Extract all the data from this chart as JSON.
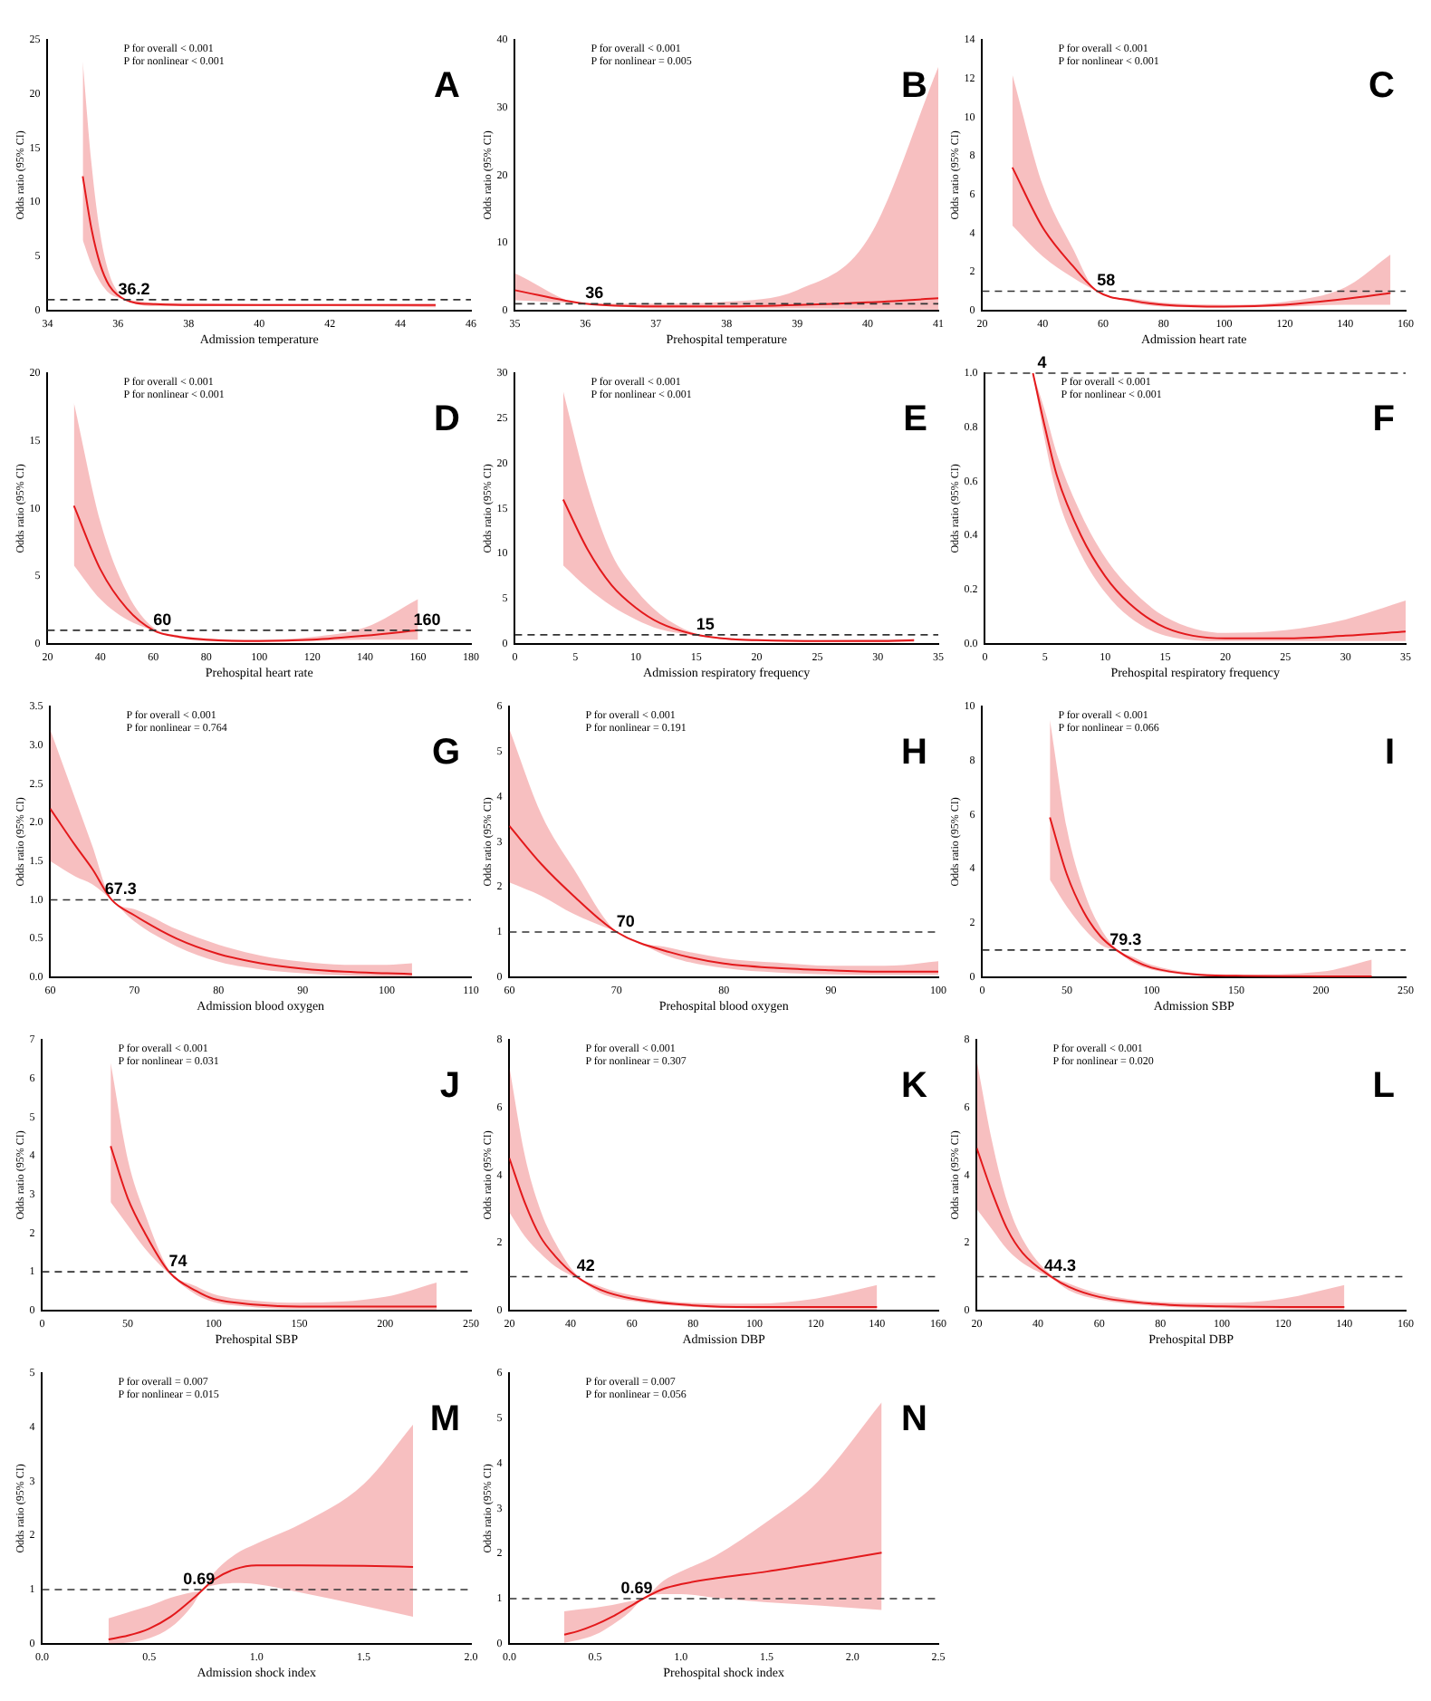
{
  "chart_data": [
    {
      "type": "line",
      "title": "A",
      "xlabel": "Admission temperature",
      "ylabel": "Odds ratio (95% CI)",
      "xlim": [
        34,
        46
      ],
      "xticks": [
        34,
        36,
        38,
        40,
        42,
        44,
        46
      ],
      "ylim": [
        0,
        25
      ],
      "yticks": [
        0,
        5,
        10,
        15,
        20,
        25
      ],
      "grid": false,
      "x": [
        35,
        35.25,
        35.5,
        35.75,
        36,
        36.2,
        36.5,
        37,
        38,
        40,
        42,
        45
      ],
      "series": [
        {
          "color": "#e41a1c",
          "values": [
            12.4,
            7.5,
            4.2,
            2.3,
            1.4,
            1.0,
            0.7,
            0.6,
            0.5,
            0.5,
            0.5,
            0.5
          ],
          "lower": [
            6.5,
            4.2,
            2.6,
            1.6,
            1.2,
            1.0,
            0.6,
            0.4,
            0.4,
            0.4,
            0.4,
            0.3
          ],
          "upper": [
            23,
            13.5,
            7,
            3.4,
            1.7,
            1.0,
            0.9,
            0.7,
            0.7,
            0.6,
            0.6,
            0.6
          ]
        }
      ],
      "ref_lines": [
        {
          "axis": "y",
          "value": 1,
          "color": "#333333",
          "line_style": "dashed"
        }
      ],
      "annotations": [
        "P for overall < 0.001",
        "P for nonlinear < 0.001",
        {
          "text": "36.2",
          "x": 36.2,
          "y": 1
        }
      ]
    },
    {
      "type": "line",
      "title": "B",
      "xlabel": "Prehospital temperature",
      "ylabel": "Odds ratio (95% CI)",
      "xlim": [
        35,
        41
      ],
      "xticks": [
        35,
        36,
        37,
        38,
        39,
        40,
        41
      ],
      "ylim": [
        0,
        40
      ],
      "yticks": [
        0,
        10,
        20,
        30,
        40
      ],
      "grid": false,
      "x": [
        35,
        36,
        37,
        38,
        39,
        40,
        41
      ],
      "series": [
        {
          "color": "#e41a1c",
          "values": [
            3,
            1,
            0.6,
            0.6,
            0.8,
            1.2,
            1.8
          ],
          "lower": [
            1.5,
            1,
            0.3,
            0.3,
            0.3,
            0.2,
            0.1
          ],
          "upper": [
            5.5,
            1,
            1,
            1.3,
            3,
            10.5,
            36
          ]
        }
      ],
      "ref_lines": [
        {
          "axis": "y",
          "value": 1,
          "color": "#333333",
          "line_style": "dashed"
        }
      ],
      "annotations": [
        "P for overall < 0.001",
        "P for nonlinear = 0.005",
        {
          "text": "36",
          "x": 36,
          "y": 1
        }
      ]
    },
    {
      "type": "line",
      "title": "C",
      "xlabel": "Admission heart rate",
      "ylabel": "Odds ratio (95% CI)",
      "xlim": [
        20,
        160
      ],
      "xticks": [
        20,
        40,
        60,
        80,
        100,
        120,
        140,
        160
      ],
      "ylim": [
        0,
        14
      ],
      "yticks": [
        0,
        2,
        4,
        6,
        8,
        10,
        12,
        14
      ],
      "grid": false,
      "x": [
        30,
        40,
        50,
        58,
        70,
        80,
        100,
        120,
        140,
        155
      ],
      "series": [
        {
          "color": "#e41a1c",
          "values": [
            7.4,
            4.3,
            2.3,
            1,
            0.5,
            0.3,
            0.2,
            0.3,
            0.6,
            0.9
          ],
          "lower": [
            4.4,
            2.8,
            1.7,
            1,
            0.4,
            0.2,
            0.15,
            0.2,
            0.3,
            0.3
          ],
          "upper": [
            12.2,
            6.5,
            3.2,
            1,
            0.6,
            0.4,
            0.3,
            0.45,
            1.2,
            2.9
          ]
        }
      ],
      "ref_lines": [
        {
          "axis": "y",
          "value": 1,
          "color": "#333333",
          "line_style": "dashed"
        }
      ],
      "annotations": [
        "P for overall < 0.001",
        "P for nonlinear < 0.001",
        {
          "text": "58",
          "x": 58,
          "y": 1
        }
      ]
    },
    {
      "type": "line",
      "title": "D",
      "xlabel": "Prehospital heart rate",
      "ylabel": "Odds ratio (95% CI)",
      "xlim": [
        20,
        180
      ],
      "xticks": [
        20,
        40,
        60,
        80,
        100,
        120,
        140,
        160,
        180
      ],
      "ylim": [
        0,
        20
      ],
      "yticks": [
        0,
        5,
        10,
        15,
        20
      ],
      "grid": false,
      "x": [
        30,
        40,
        50,
        60,
        70,
        80,
        100,
        120,
        140,
        160
      ],
      "series": [
        {
          "color": "#e41a1c",
          "values": [
            10.2,
            5.5,
            2.6,
            1.0,
            0.5,
            0.3,
            0.2,
            0.3,
            0.6,
            1.0
          ],
          "lower": [
            5.8,
            3.3,
            1.8,
            1,
            0.4,
            0.2,
            0.15,
            0.2,
            0.3,
            0.3
          ],
          "upper": [
            17.8,
            9,
            3.8,
            1.2,
            0.6,
            0.4,
            0.3,
            0.5,
            1.2,
            3.3
          ]
        }
      ],
      "ref_lines": [
        {
          "axis": "y",
          "value": 1,
          "color": "#333333",
          "line_style": "dashed"
        }
      ],
      "annotations": [
        "P for overall < 0.001",
        "P for nonlinear < 0.001",
        {
          "text": "60",
          "x": 60,
          "y": 1
        },
        {
          "text": "160",
          "x": 160,
          "y": 1
        }
      ]
    },
    {
      "type": "line",
      "title": "E",
      "xlabel": "Admission respiratory frequency",
      "ylabel": "Odds ratio (95% CI)",
      "xlim": [
        0,
        35
      ],
      "xticks": [
        0,
        5,
        10,
        15,
        20,
        25,
        30,
        35
      ],
      "ylim": [
        0,
        30
      ],
      "yticks": [
        0,
        5,
        10,
        15,
        20,
        25,
        30
      ],
      "grid": false,
      "x": [
        4,
        6,
        8,
        10,
        12,
        15,
        18,
        20,
        25,
        30,
        33
      ],
      "series": [
        {
          "color": "#e41a1c",
          "values": [
            16,
            10.5,
            6.5,
            4,
            2.3,
            1,
            0.5,
            0.4,
            0.3,
            0.3,
            0.4
          ],
          "lower": [
            8.7,
            6.2,
            4.2,
            2.7,
            1.6,
            0.9,
            0.4,
            0.3,
            0.2,
            0.2,
            0.2
          ],
          "upper": [
            28,
            17.5,
            10,
            6,
            3.3,
            1.1,
            0.6,
            0.5,
            0.4,
            0.5,
            0.5
          ]
        }
      ],
      "ref_lines": [
        {
          "axis": "y",
          "value": 1,
          "color": "#333333",
          "line_style": "dashed"
        }
      ],
      "annotations": [
        "P for overall < 0.001",
        "P for nonlinear < 0.001",
        {
          "text": "15",
          "x": 15,
          "y": 1
        }
      ]
    },
    {
      "type": "line",
      "title": "F",
      "xlabel": "Prehospital respiratory frequency",
      "ylabel": "Odds ratio (95% CI)",
      "xlim": [
        0,
        35
      ],
      "xticks": [
        0,
        5,
        10,
        15,
        20,
        25,
        30,
        35
      ],
      "ylim": [
        0,
        1
      ],
      "yticks": [
        {
          "value": 0,
          "label": "0.0"
        },
        0.2,
        0.4,
        0.6,
        0.8,
        {
          "value": 1,
          "label": "1.0"
        }
      ],
      "grid": false,
      "x": [
        4,
        5,
        6,
        8,
        10,
        12,
        15,
        20,
        25,
        30,
        35
      ],
      "series": [
        {
          "color": "#e41a1c",
          "values": [
            1,
            0.8,
            0.62,
            0.4,
            0.25,
            0.15,
            0.06,
            0.02,
            0.02,
            0.03,
            0.045
          ],
          "lower": [
            1,
            0.75,
            0.55,
            0.33,
            0.19,
            0.1,
            0.03,
            0.01,
            0.01,
            0.01,
            0.01
          ],
          "upper": [
            1,
            0.86,
            0.7,
            0.48,
            0.32,
            0.21,
            0.1,
            0.04,
            0.05,
            0.09,
            0.16
          ]
        }
      ],
      "ref_lines": [
        {
          "axis": "y",
          "value": 1,
          "color": "#333333",
          "line_style": "dashed"
        }
      ],
      "annotations": [
        "P for overall < 0.001",
        "P for nonlinear < 0.001",
        {
          "text": "4",
          "x": 4,
          "y": 1
        }
      ]
    },
    {
      "type": "line",
      "title": "G",
      "xlabel": "Admission blood oxygen",
      "ylabel": "Odds ratio (95% CI)",
      "xlim": [
        60,
        110
      ],
      "xticks": [
        60,
        70,
        80,
        90,
        100,
        110
      ],
      "ylim": [
        0,
        3.5
      ],
      "yticks": [
        {
          "value": 0,
          "label": "0.0"
        },
        0.5,
        {
          "value": 1,
          "label": "1.0"
        },
        1.5,
        {
          "value": 2,
          "label": "2.0"
        },
        2.5,
        {
          "value": 3,
          "label": "3.0"
        },
        3.5
      ],
      "grid": false,
      "x": [
        60,
        63,
        65,
        67.3,
        70,
        75,
        80,
        85,
        90,
        95,
        100,
        103
      ],
      "series": [
        {
          "color": "#e41a1c",
          "values": [
            2.18,
            1.7,
            1.4,
            1,
            0.8,
            0.5,
            0.3,
            0.18,
            0.11,
            0.07,
            0.05,
            0.04
          ],
          "lower": [
            1.5,
            1.3,
            1.2,
            1,
            0.72,
            0.4,
            0.2,
            0.1,
            0.05,
            0.02,
            0.01,
            0.01
          ],
          "upper": [
            3.2,
            2.3,
            1.7,
            1,
            0.88,
            0.62,
            0.42,
            0.28,
            0.2,
            0.16,
            0.16,
            0.18
          ]
        }
      ],
      "ref_lines": [
        {
          "axis": "y",
          "value": 1,
          "color": "#333333",
          "line_style": "dashed"
        }
      ],
      "annotations": [
        "P for overall < 0.001",
        "P for nonlinear = 0.764",
        {
          "text": "67.3",
          "x": 67.3,
          "y": 1
        }
      ]
    },
    {
      "type": "line",
      "title": "H",
      "xlabel": "Prehospital blood oxygen",
      "ylabel": "Odds ratio (95% CI)",
      "xlim": [
        60,
        100
      ],
      "xticks": [
        60,
        70,
        80,
        90,
        100
      ],
      "ylim": [
        0,
        6
      ],
      "yticks": [
        0,
        1,
        2,
        3,
        4,
        5,
        6
      ],
      "grid": false,
      "x": [
        60,
        63,
        66,
        70,
        75,
        80,
        85,
        90,
        95,
        100
      ],
      "series": [
        {
          "color": "#e41a1c",
          "values": [
            3.35,
            2.5,
            1.8,
            1,
            0.55,
            0.3,
            0.2,
            0.15,
            0.12,
            0.12
          ],
          "lower": [
            2.1,
            1.8,
            1.4,
            1,
            0.45,
            0.2,
            0.1,
            0.06,
            0.05,
            0.05
          ],
          "upper": [
            5.5,
            3.6,
            2.4,
            1,
            0.65,
            0.42,
            0.32,
            0.25,
            0.25,
            0.35
          ]
        }
      ],
      "ref_lines": [
        {
          "axis": "y",
          "value": 1,
          "color": "#333333",
          "line_style": "dashed"
        }
      ],
      "annotations": [
        "P for overall < 0.001",
        "P for nonlinear = 0.191",
        {
          "text": "70",
          "x": 70,
          "y": 1
        }
      ]
    },
    {
      "type": "line",
      "title": "I",
      "xlabel": "Admission SBP",
      "ylabel": "Odds ratio (95% CI)",
      "xlim": [
        0,
        250
      ],
      "xticks": [
        0,
        50,
        100,
        150,
        200,
        250
      ],
      "ylim": [
        0,
        10
      ],
      "yticks": [
        0,
        2,
        4,
        6,
        8,
        10
      ],
      "grid": false,
      "x": [
        40,
        50,
        60,
        70,
        79.3,
        90,
        100,
        125,
        150,
        200,
        230
      ],
      "series": [
        {
          "color": "#e41a1c",
          "values": [
            5.9,
            3.8,
            2.4,
            1.5,
            1,
            0.6,
            0.35,
            0.1,
            0.05,
            0.03,
            0.03
          ],
          "lower": [
            3.6,
            2.6,
            1.8,
            1.2,
            0.95,
            0.5,
            0.28,
            0.07,
            0.02,
            0.01,
            0.005
          ],
          "upper": [
            9.5,
            5.5,
            3.2,
            1.8,
            1.05,
            0.72,
            0.45,
            0.15,
            0.09,
            0.2,
            0.65
          ]
        }
      ],
      "ref_lines": [
        {
          "axis": "y",
          "value": 1,
          "color": "#333333",
          "line_style": "dashed"
        }
      ],
      "annotations": [
        "P for overall < 0.001",
        "P for nonlinear = 0.066",
        {
          "text": "79.3",
          "x": 79.3,
          "y": 1
        }
      ]
    },
    {
      "type": "line",
      "title": "J",
      "xlabel": "Prehospital SBP",
      "ylabel": "Odds ratio (95% CI)",
      "xlim": [
        0,
        250
      ],
      "xticks": [
        0,
        50,
        100,
        150,
        200,
        250
      ],
      "ylim": [
        0,
        7
      ],
      "yticks": [
        0,
        1,
        2,
        3,
        4,
        5,
        6,
        7
      ],
      "grid": false,
      "x": [
        40,
        50,
        60,
        74,
        90,
        100,
        125,
        150,
        200,
        230
      ],
      "series": [
        {
          "color": "#e41a1c",
          "values": [
            4.25,
            2.9,
            2,
            1,
            0.5,
            0.3,
            0.15,
            0.1,
            0.1,
            0.1
          ],
          "lower": [
            2.8,
            2.2,
            1.6,
            0.95,
            0.4,
            0.22,
            0.08,
            0.04,
            0.02,
            0.01
          ],
          "upper": [
            6.4,
            3.9,
            2.5,
            1.05,
            0.62,
            0.42,
            0.25,
            0.2,
            0.35,
            0.72
          ]
        }
      ],
      "ref_lines": [
        {
          "axis": "y",
          "value": 1,
          "color": "#333333",
          "line_style": "dashed"
        }
      ],
      "annotations": [
        "P for overall < 0.001",
        "P for nonlinear = 0.031",
        {
          "text": "74",
          "x": 74,
          "y": 1
        }
      ]
    },
    {
      "type": "line",
      "title": "K",
      "xlabel": "Admission DBP",
      "ylabel": "Odds ratio (95% CI)",
      "xlim": [
        20,
        160
      ],
      "xticks": [
        20,
        40,
        60,
        80,
        100,
        120,
        140,
        160
      ],
      "ylim": [
        0,
        8
      ],
      "yticks": [
        0,
        2,
        4,
        6,
        8
      ],
      "grid": false,
      "x": [
        20,
        25,
        30,
        35,
        42,
        50,
        60,
        80,
        100,
        120,
        140
      ],
      "series": [
        {
          "color": "#e41a1c",
          "values": [
            4.5,
            3.2,
            2.2,
            1.6,
            1,
            0.6,
            0.35,
            0.15,
            0.1,
            0.1,
            0.1
          ],
          "lower": [
            2.9,
            2.2,
            1.7,
            1.3,
            0.95,
            0.5,
            0.28,
            0.1,
            0.05,
            0.03,
            0.02
          ],
          "upper": [
            7.2,
            4.6,
            3,
            2,
            1.05,
            0.7,
            0.45,
            0.22,
            0.2,
            0.35,
            0.75
          ]
        }
      ],
      "ref_lines": [
        {
          "axis": "y",
          "value": 1,
          "color": "#333333",
          "line_style": "dashed"
        }
      ],
      "annotations": [
        "P for overall < 0.001",
        "P for nonlinear = 0.307",
        {
          "text": "42",
          "x": 42,
          "y": 1
        }
      ]
    },
    {
      "type": "line",
      "title": "L",
      "xlabel": "Prehospital DBP",
      "ylabel": "Odds ratio (95% CI)",
      "xlim": [
        20,
        160
      ],
      "xticks": [
        20,
        40,
        60,
        80,
        100,
        120,
        140,
        160
      ],
      "ylim": [
        0,
        8
      ],
      "yticks": [
        0,
        2,
        4,
        6,
        8
      ],
      "grid": false,
      "x": [
        20,
        25,
        30,
        35,
        44.3,
        50,
        60,
        80,
        100,
        120,
        140
      ],
      "series": [
        {
          "color": "#e41a1c",
          "values": [
            4.8,
            3.5,
            2.4,
            1.7,
            1,
            0.7,
            0.4,
            0.18,
            0.12,
            0.1,
            0.1
          ],
          "lower": [
            3,
            2.4,
            1.8,
            1.4,
            0.95,
            0.6,
            0.32,
            0.12,
            0.06,
            0.03,
            0.02
          ],
          "upper": [
            7.4,
            5,
            3.2,
            2.1,
            1.05,
            0.8,
            0.5,
            0.25,
            0.22,
            0.35,
            0.75
          ]
        }
      ],
      "ref_lines": [
        {
          "axis": "y",
          "value": 1,
          "color": "#333333",
          "line_style": "dashed"
        }
      ],
      "annotations": [
        "P for overall < 0.001",
        "P for nonlinear = 0.020",
        {
          "text": "44.3",
          "x": 44.3,
          "y": 1
        }
      ]
    },
    {
      "type": "line",
      "title": "M",
      "xlabel": "Admission shock index",
      "ylabel": "Odds ratio (95% CI)",
      "xlim": [
        0,
        2
      ],
      "xticks": [
        {
          "value": 0,
          "label": "0.0"
        },
        0.5,
        {
          "value": 1,
          "label": "1.0"
        },
        1.5,
        {
          "value": 2,
          "label": "2.0"
        }
      ],
      "ylim": [
        0,
        5
      ],
      "yticks": [
        0,
        1,
        2,
        3,
        4,
        5
      ],
      "grid": false,
      "x": [
        0.31,
        0.4,
        0.5,
        0.6,
        0.7,
        0.75,
        0.8,
        0.9,
        1,
        1.2,
        1.5,
        1.73
      ],
      "series": [
        {
          "color": "#e41a1c",
          "values": [
            0.08,
            0.15,
            0.28,
            0.5,
            0.82,
            1,
            1.18,
            1.38,
            1.45,
            1.45,
            1.44,
            1.42
          ],
          "lower": [
            0,
            0.02,
            0.1,
            0.3,
            0.7,
            1,
            1.08,
            1.12,
            1.1,
            0.95,
            0.7,
            0.5
          ],
          "upper": [
            0.47,
            0.58,
            0.7,
            0.85,
            0.95,
            1,
            1.3,
            1.65,
            1.85,
            2.2,
            2.95,
            4.05
          ]
        }
      ],
      "ref_lines": [
        {
          "axis": "y",
          "value": 1,
          "color": "#333333",
          "line_style": "dashed"
        }
      ],
      "annotations": [
        "P for overall = 0.007",
        "P for nonlinear = 0.015",
        {
          "text": "0.69",
          "x": 0.69,
          "y": 1
        }
      ]
    },
    {
      "type": "line",
      "title": "N",
      "xlabel": "Prehospital shock index",
      "ylabel": "Odds ratio (95% CI)",
      "xlim": [
        0,
        2.5
      ],
      "xticks": [
        {
          "value": 0,
          "label": "0.0"
        },
        0.5,
        {
          "value": 1,
          "label": "1.0"
        },
        1.5,
        {
          "value": 2,
          "label": "2.0"
        },
        2.5
      ],
      "ylim": [
        0,
        6
      ],
      "yticks": [
        0,
        1,
        2,
        3,
        4,
        5,
        6
      ],
      "grid": false,
      "x": [
        0.32,
        0.4,
        0.5,
        0.6,
        0.7,
        0.78,
        0.9,
        1,
        1.2,
        1.5,
        1.8,
        2.17
      ],
      "series": [
        {
          "color": "#e41a1c",
          "values": [
            0.2,
            0.28,
            0.42,
            0.6,
            0.82,
            1,
            1.22,
            1.32,
            1.45,
            1.6,
            1.78,
            2.02
          ],
          "lower": [
            0.02,
            0.08,
            0.2,
            0.42,
            0.7,
            1,
            1.1,
            1.1,
            1.02,
            0.92,
            0.85,
            0.75
          ],
          "upper": [
            0.72,
            0.76,
            0.8,
            0.86,
            0.94,
            1,
            1.4,
            1.6,
            1.95,
            2.7,
            3.6,
            5.35
          ]
        }
      ],
      "ref_lines": [
        {
          "axis": "y",
          "value": 1,
          "color": "#333333",
          "line_style": "dashed"
        }
      ],
      "annotations": [
        "P for overall = 0.007",
        "P for nonlinear = 0.056",
        {
          "text": "0.69",
          "x": 0.69,
          "y": 1
        }
      ]
    }
  ]
}
